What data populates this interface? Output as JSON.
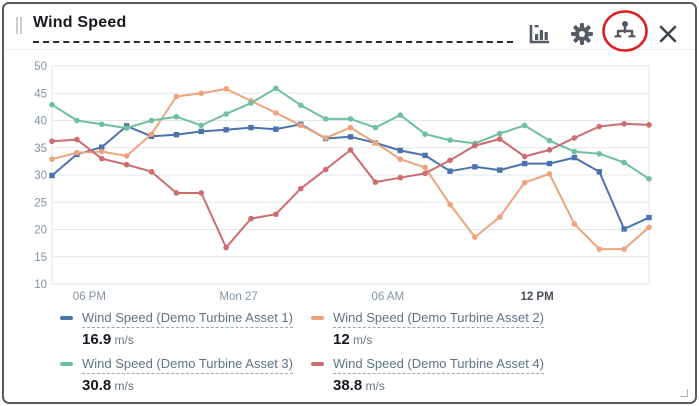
{
  "header": {
    "title": "Wind Speed",
    "icons": [
      {
        "name": "bar-chart-icon",
        "purpose": "chart type"
      },
      {
        "name": "gear-icon",
        "purpose": "settings"
      },
      {
        "name": "tree-icon",
        "purpose": "asset hierarchy",
        "annotated": true
      },
      {
        "name": "close-icon",
        "purpose": "close widget"
      }
    ],
    "annotation_color": "#e01e1e"
  },
  "chart_data": {
    "type": "line",
    "title": "Wind Speed",
    "xlabel": "",
    "ylabel": "",
    "ylim": [
      10,
      50
    ],
    "yticks": [
      10,
      15,
      20,
      25,
      30,
      35,
      40,
      45,
      50
    ],
    "grid": true,
    "legend_position": "bottom",
    "x_sampling": "hourly, 25 points",
    "x_ticks": [
      {
        "label": "06 PM",
        "pos": 1.5,
        "bold": false
      },
      {
        "label": "Mon 27",
        "pos": 7.5,
        "bold": false
      },
      {
        "label": "06 AM",
        "pos": 13.5,
        "bold": false
      },
      {
        "label": "12 PM",
        "pos": 19.5,
        "bold": true
      }
    ],
    "series": [
      {
        "name": "Wind Speed (Demo Turbine Asset 1)",
        "color": "#4a72ad",
        "marker": "square",
        "values": [
          29.9,
          33.8,
          35.1,
          39.0,
          37.1,
          37.4,
          38.0,
          38.3,
          38.7,
          38.4,
          39.3,
          36.7,
          37.0,
          35.9,
          34.5,
          33.6,
          30.7,
          31.5,
          30.9,
          32.1,
          32.1,
          33.2,
          30.6,
          20.1,
          22.2
        ]
      },
      {
        "name": "Wind Speed (Demo Turbine Asset 2)",
        "color": "#efa37b",
        "marker": "circle",
        "values": [
          32.9,
          34.1,
          34.3,
          33.5,
          37.5,
          44.4,
          45.0,
          45.8,
          43.6,
          41.4,
          39.1,
          36.8,
          38.7,
          35.9,
          32.9,
          31.4,
          24.6,
          18.6,
          22.3,
          28.6,
          30.2,
          21.0,
          16.4,
          16.4,
          20.4
        ]
      },
      {
        "name": "Wind Speed (Demo Turbine Asset 3)",
        "color": "#6ebf9d",
        "marker": "circle",
        "values": [
          42.9,
          40.0,
          39.3,
          38.6,
          40.0,
          40.7,
          39.1,
          41.2,
          43.2,
          45.9,
          42.8,
          40.3,
          40.3,
          38.7,
          41.0,
          37.5,
          36.4,
          35.8,
          37.6,
          39.1,
          36.3,
          34.3,
          33.9,
          32.3,
          29.3
        ]
      },
      {
        "name": "Wind Speed (Demo Turbine Asset 4)",
        "color": "#cd6b6e",
        "marker": "circle",
        "values": [
          36.2,
          36.5,
          33.0,
          31.9,
          30.6,
          26.7,
          26.7,
          16.7,
          22.0,
          22.8,
          27.5,
          31.0,
          34.6,
          28.7,
          29.5,
          30.3,
          32.7,
          35.4,
          36.6,
          33.4,
          34.6,
          36.8,
          38.9,
          39.4,
          39.2
        ]
      }
    ]
  },
  "legend": {
    "items": [
      {
        "label": "Wind Speed (Demo Turbine Asset 1)",
        "value": "16.9",
        "unit": "m/s",
        "color": "#4a72ad"
      },
      {
        "label": "Wind Speed (Demo Turbine Asset 2)",
        "value": "12",
        "unit": "m/s",
        "color": "#efa37b"
      },
      {
        "label": "Wind Speed (Demo Turbine Asset 3)",
        "value": "30.8",
        "unit": "m/s",
        "color": "#6ebf9d"
      },
      {
        "label": "Wind Speed (Demo Turbine Asset 4)",
        "value": "38.8",
        "unit": "m/s",
        "color": "#cd6b6e"
      }
    ]
  },
  "style": {
    "grid_color": "#e2e7eb",
    "tick_color": "#8193a7",
    "bold_tick_color": "#45505c"
  }
}
